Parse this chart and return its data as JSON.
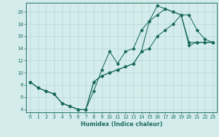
{
  "title": "",
  "xlabel": "Humidex (Indice chaleur)",
  "bg_color": "#d4ecec",
  "grid_color": "#b8d8d8",
  "line_color": "#1a6b5a",
  "xlim": [
    -0.5,
    23.5
  ],
  "ylim": [
    3.5,
    21.5
  ],
  "xticks": [
    0,
    1,
    2,
    3,
    4,
    5,
    6,
    7,
    8,
    9,
    10,
    11,
    12,
    13,
    14,
    15,
    16,
    17,
    18,
    19,
    20,
    21,
    22,
    23
  ],
  "yticks": [
    4,
    6,
    8,
    10,
    12,
    14,
    16,
    18,
    20
  ],
  "line1_x": [
    0,
    1,
    2,
    3,
    4,
    5,
    6,
    7,
    8,
    9,
    10,
    11,
    12,
    13,
    14,
    15,
    16,
    17,
    18,
    19,
    20,
    21,
    22,
    23
  ],
  "line1_y": [
    8.5,
    7.5,
    7.0,
    6.5,
    5.0,
    4.5,
    4.0,
    4.0,
    7.0,
    10.5,
    13.5,
    11.5,
    13.5,
    14.0,
    17.0,
    18.5,
    19.5,
    20.5,
    20.0,
    19.5,
    15.0,
    15.0,
    15.0,
    15.0
  ],
  "line2_x": [
    0,
    1,
    2,
    3,
    4,
    5,
    6,
    7,
    8,
    9,
    10,
    11,
    12,
    13,
    14,
    15,
    16,
    17,
    18,
    19,
    20,
    21,
    22,
    23
  ],
  "line2_y": [
    8.5,
    7.5,
    7.0,
    6.5,
    5.0,
    4.5,
    4.0,
    4.0,
    8.5,
    9.5,
    10.0,
    10.5,
    11.0,
    11.5,
    13.5,
    18.5,
    21.0,
    20.5,
    20.0,
    19.5,
    19.5,
    17.0,
    15.5,
    15.0
  ],
  "line3_x": [
    0,
    1,
    2,
    3,
    4,
    5,
    6,
    7,
    8,
    9,
    10,
    11,
    12,
    13,
    14,
    15,
    16,
    17,
    18,
    19,
    20,
    21,
    22,
    23
  ],
  "line3_y": [
    8.5,
    7.5,
    7.0,
    6.5,
    5.0,
    4.5,
    4.0,
    4.0,
    8.5,
    9.5,
    10.0,
    10.5,
    11.0,
    11.5,
    13.5,
    14.0,
    16.0,
    17.0,
    18.0,
    19.5,
    14.5,
    15.0,
    15.0,
    15.0
  ],
  "label_fontsize": 5,
  "xlabel_fontsize": 6
}
